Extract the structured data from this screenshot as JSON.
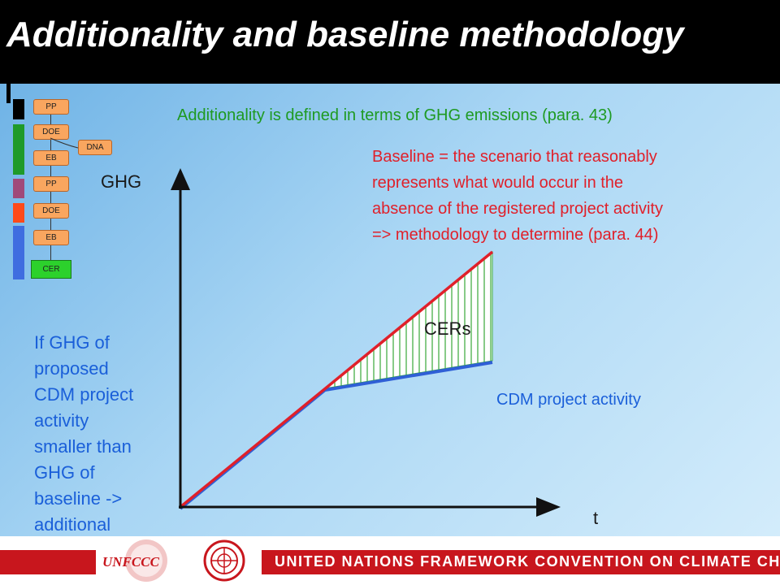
{
  "title": "Additionality and baseline methodology",
  "additionality_text": "Additionality is defined in terms of GHG emissions (para. 43)",
  "baseline_lines": [
    "Baseline = the scenario that reasonably",
    "represents what would occur in the",
    "absence of the registered project activity",
    "=> methodology to determine (para. 44)"
  ],
  "diagram": {
    "y_axis_label": "GHG",
    "x_axis_label": "t",
    "area_label": "CERs",
    "project_line_label": "CDM project activity",
    "baseline_color": "#e0202a",
    "project_color": "#2f5fd6",
    "hatch_color": "#38a838"
  },
  "additional_lines": [
    "If GHG of",
    "proposed",
    "CDM project",
    "activity",
    "smaller than",
    "GHG of",
    "baseline ->",
    "additional"
  ],
  "flow": {
    "steps": [
      "PP",
      "DOE",
      "EB",
      "PP",
      "DOE",
      "EB"
    ],
    "side_step": "DNA",
    "final_step": "CER",
    "bar_colors": [
      "#000000",
      "#1f9a2a",
      "#a04a7a",
      "#ff4a1a",
      "#3f6de0"
    ]
  },
  "footer": {
    "org_name": "UNITED NATIONS FRAMEWORK CONVENTION ON CLIMATE CHANGE",
    "logo_text": "UNFCCC",
    "accent_color": "#c8161d"
  }
}
